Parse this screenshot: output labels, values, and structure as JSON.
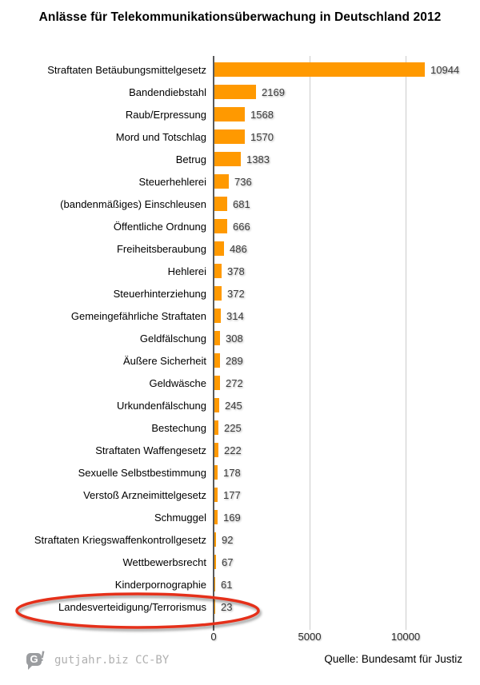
{
  "title": "Anlässe für Telekommunikationsüberwachung in Deutschland 2012",
  "chart_data": {
    "type": "bar",
    "orientation": "horizontal",
    "title": "Anlässe für Telekommunikationsüberwachung in Deutschland 2012",
    "categories": [
      "Straftaten Betäubungsmittelgesetz",
      "Bandendiebstahl",
      "Raub/Erpressung",
      "Mord und Totschlag",
      "Betrug",
      "Steuerhehlerei",
      "(bandenmäßiges) Einschleusen",
      "Öffentliche Ordnung",
      "Freiheitsberaubung",
      "Hehlerei",
      "Steuerhinterziehung",
      "Gemeingefährliche Straftaten",
      "Geldfälschung",
      "Äußere Sicherheit",
      "Geldwäsche",
      "Urkundenfälschung",
      "Bestechung",
      "Straftaten Waffengesetz",
      "Sexuelle Selbstbestimmung",
      "Verstoß Arzneimittelgesetz",
      "Schmuggel",
      "Straftaten Kriegswaffenkontrollgesetz",
      "Wettbewerbsrecht",
      "Kinderpornographie",
      "Landesverteidigung/Terrorismus"
    ],
    "values": [
      10944,
      2169,
      1568,
      1570,
      1383,
      736,
      681,
      666,
      486,
      378,
      372,
      314,
      308,
      289,
      272,
      245,
      225,
      222,
      178,
      177,
      169,
      92,
      67,
      61,
      23
    ],
    "bar_color": "#FF9900",
    "xlim": [
      0,
      12400
    ],
    "x_ticks": [
      0,
      5000,
      10000
    ],
    "x_tick_labels": [
      "0",
      "5000",
      "10000"
    ],
    "grid": true,
    "legend": false,
    "annotation": {
      "shape": "ellipse",
      "color": "#E5301A",
      "highlighted_category": "Landesverteidigung/Terrorismus",
      "highlighted_value": 23
    }
  },
  "footer": {
    "logo_glyph": "G",
    "logo_bang": "!",
    "attribution": "gutjahr.biz CC-BY",
    "source": "Quelle: Bundesamt für Justiz"
  }
}
